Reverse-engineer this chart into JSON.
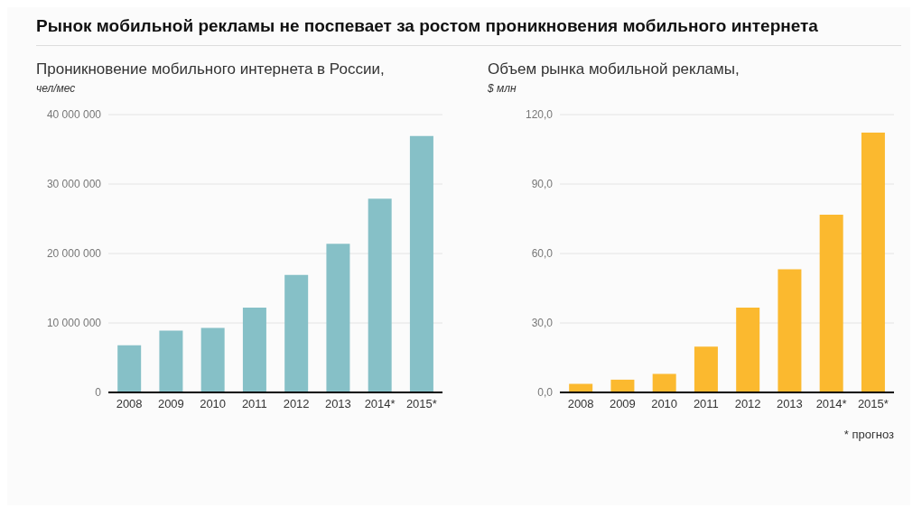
{
  "chart_data": [
    {
      "type": "bar",
      "title": "Рынок мобильной рекламы не поспевает за ростом проникновения мобильного интернета",
      "subtitle": "Проникновение мобильного интернета в России,",
      "ylabel": "чел/мес",
      "categories": [
        "2008",
        "2009",
        "2010",
        "2011",
        "2012",
        "2013",
        "2014*",
        "2015*"
      ],
      "values": [
        6800000,
        8900000,
        9300000,
        12200000,
        16900000,
        21400000,
        27900000,
        36900000
      ],
      "color": "#86c0c7",
      "ylim": [
        0,
        40000000
      ],
      "yticks": [
        {
          "value": 0,
          "label": "0"
        },
        {
          "value": 10000000,
          "label": "10 000 000"
        },
        {
          "value": 20000000,
          "label": "20 000 000"
        },
        {
          "value": 30000000,
          "label": "30 000 000"
        },
        {
          "value": 40000000,
          "label": "40 000 000"
        }
      ],
      "grid": "y"
    },
    {
      "type": "bar",
      "subtitle": "Объем рынка мобильной рекламы,",
      "ylabel": "$ млн",
      "categories": [
        "2008",
        "2009",
        "2010",
        "2011",
        "2012",
        "2013",
        "2014*",
        "2015*"
      ],
      "values": [
        3.7,
        5.5,
        8.0,
        19.8,
        36.6,
        53.2,
        76.8,
        112.2
      ],
      "color": "#fbb92f",
      "ylim": [
        0,
        120
      ],
      "yticks": [
        {
          "value": 0,
          "label": "0,0"
        },
        {
          "value": 30,
          "label": "30,0"
        },
        {
          "value": 60,
          "label": "60,0"
        },
        {
          "value": 90,
          "label": "90,0"
        },
        {
          "value": 120,
          "label": "120,0"
        }
      ],
      "grid": "y",
      "annotations": [
        "* прогноз"
      ]
    }
  ]
}
